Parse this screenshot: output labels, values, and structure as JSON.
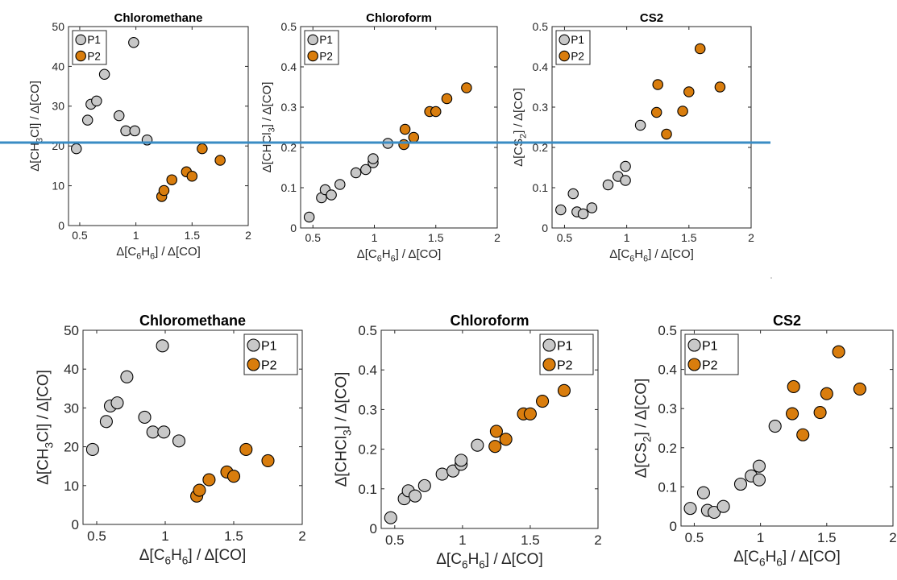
{
  "chart_data": [
    {
      "type": "scatter",
      "title": "Chloromethane",
      "xlabel": "Δ[C6H6] / Δ[CO]",
      "ylabel": "Δ[CH3Cl] / Δ[CO]",
      "xlim": [
        0.4,
        2
      ],
      "ylim": [
        0,
        50
      ],
      "xticks": [
        "0.5",
        "1",
        "1.5",
        "2"
      ],
      "yticks": [
        "0",
        "10",
        "20",
        "30",
        "40",
        "50"
      ],
      "legend": "top-left",
      "series": [
        {
          "name": "P1",
          "color": "#c8c8c8",
          "x": [
            0.47,
            0.57,
            0.6,
            0.65,
            0.72,
            0.85,
            0.91,
            0.98,
            0.99,
            1.1
          ],
          "y": [
            19.3,
            26.5,
            30.5,
            31.3,
            38.0,
            27.6,
            23.8,
            46.0,
            23.8,
            21.5
          ]
        },
        {
          "name": "P2",
          "color": "#d97d0d",
          "x": [
            1.23,
            1.25,
            1.32,
            1.45,
            1.5,
            1.59,
            1.75
          ],
          "y": [
            7.3,
            8.8,
            11.5,
            13.5,
            12.4,
            19.3,
            16.4
          ]
        }
      ]
    },
    {
      "type": "scatter",
      "title": "Chloroform",
      "xlabel": "Δ[C6H6] / Δ[CO]",
      "ylabel": "Δ[CHCl3] / Δ[CO]",
      "xlim": [
        0.4,
        2
      ],
      "ylim": [
        0,
        0.5
      ],
      "xticks": [
        "0.5",
        "1",
        "1.5",
        "2"
      ],
      "yticks": [
        "0",
        "0.1",
        "0.2",
        "0.3",
        "0.4",
        "0.5"
      ],
      "legend": "top-left",
      "series": [
        {
          "name": "P1",
          "color": "#c8c8c8",
          "x": [
            0.47,
            0.57,
            0.6,
            0.65,
            0.72,
            0.85,
            0.93,
            0.99,
            0.99,
            1.11
          ],
          "y": [
            0.027,
            0.075,
            0.095,
            0.082,
            0.108,
            0.137,
            0.145,
            0.162,
            0.172,
            0.21
          ]
        },
        {
          "name": "P2",
          "color": "#d97d0d",
          "x": [
            1.24,
            1.25,
            1.32,
            1.45,
            1.5,
            1.59,
            1.75
          ],
          "y": [
            0.207,
            0.245,
            0.225,
            0.289,
            0.289,
            0.321,
            0.348
          ]
        }
      ]
    },
    {
      "type": "scatter",
      "title": "CS2",
      "xlabel": "Δ[C6H6] / Δ[CO]",
      "ylabel": "Δ[CS2] / Δ[CO]",
      "xlim": [
        0.4,
        2
      ],
      "ylim": [
        0,
        0.5
      ],
      "xticks": [
        "0.5",
        "1",
        "1.5",
        "2"
      ],
      "yticks": [
        "0",
        "0.1",
        "0.2",
        "0.3",
        "0.4",
        "0.5"
      ],
      "legend": "top-left",
      "series": [
        {
          "name": "P1",
          "color": "#c8c8c8",
          "x": [
            0.47,
            0.57,
            0.6,
            0.65,
            0.72,
            0.85,
            0.93,
            0.99,
            0.99,
            1.11
          ],
          "y": [
            0.045,
            0.085,
            0.04,
            0.035,
            0.05,
            0.107,
            0.128,
            0.153,
            0.118,
            0.255
          ]
        },
        {
          "name": "P2",
          "color": "#d97d0d",
          "x": [
            1.24,
            1.25,
            1.32,
            1.45,
            1.5,
            1.59,
            1.75
          ],
          "y": [
            0.287,
            0.356,
            0.233,
            0.29,
            0.338,
            0.445,
            0.35
          ]
        }
      ]
    }
  ],
  "reference_line": {
    "color": "#3a8cc4"
  }
}
